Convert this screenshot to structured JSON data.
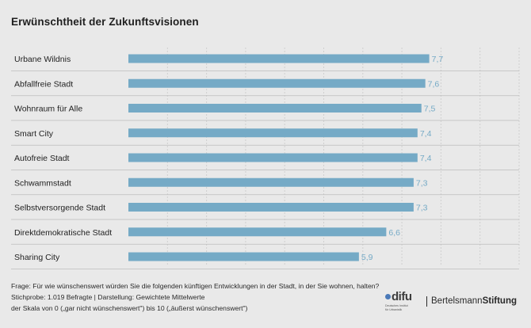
{
  "title": "Erwünschtheit der Zukunftsvisionen",
  "chart_data": {
    "type": "bar",
    "orientation": "horizontal",
    "categories": [
      "Urbane Wildnis",
      "Abfallfreie Stadt",
      "Wohnraum für Alle",
      "Smart City",
      "Autofreie Stadt",
      "Schwammstadt",
      "Selbstversorgende Stadt",
      "Direktdemokratische Stadt",
      "Sharing City"
    ],
    "values": [
      7.7,
      7.6,
      7.5,
      7.4,
      7.4,
      7.3,
      7.3,
      6.6,
      5.9
    ],
    "value_labels": [
      "7,7",
      "7,6",
      "7,5",
      "7,4",
      "7,4",
      "7,3",
      "7,3",
      "6,6",
      "5,9"
    ],
    "xlim": [
      0,
      10
    ],
    "grid": "vertical dashed",
    "bar_color": "#75aac6",
    "label_color": "#75aac6"
  },
  "notes": {
    "line1": "Frage: Für wie wünschenswert würden Sie die folgenden künftigen Entwicklungen in der Stadt, in der Sie wohnen, halten?",
    "line2": "Stichprobe: 1.019 Befragte | Darstellung: Gewichtete Mittelwerte",
    "line3": "der Skala von 0 („gar nicht wünschenswert\") bis 10 („äußerst wünschenswert\")"
  },
  "logos": {
    "difu": "difu",
    "difu_sub1": "Deutsches Institut",
    "difu_sub2": "für Urbanistik",
    "bertelsmann_a": "Bertelsmann",
    "bertelsmann_b": "Stiftung"
  }
}
